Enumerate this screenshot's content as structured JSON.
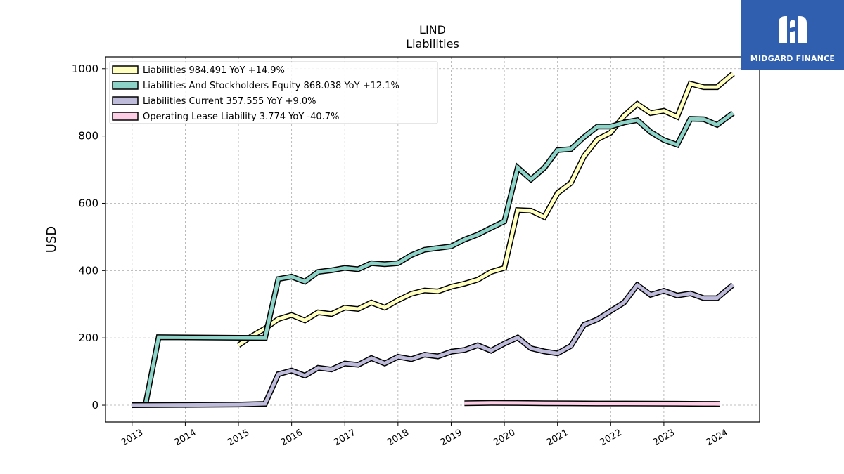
{
  "chart_data": {
    "type": "line",
    "title": "LIND",
    "subtitle": "Liabilities",
    "ylabel": "USD",
    "xlabel": "",
    "ylim": [
      -50,
      1035
    ],
    "xlim": [
      2012.5,
      2024.8
    ],
    "yticks": [
      0,
      200,
      400,
      600,
      800,
      1000
    ],
    "xticks": [
      "2013",
      "2014",
      "2015",
      "2016",
      "2017",
      "2018",
      "2019",
      "2020",
      "2021",
      "2022",
      "2023",
      "2024"
    ],
    "grid": true,
    "legend_position": "top-left",
    "series": [
      {
        "name": "Liabilities",
        "legend": "Liabilities  984.491 YoY +14.9%",
        "color": "#ffffbf",
        "x": [
          2015.0,
          2015.25,
          2015.5,
          2015.75,
          2016.0,
          2016.25,
          2016.5,
          2016.75,
          2017.0,
          2017.25,
          2017.5,
          2017.75,
          2018.0,
          2018.25,
          2018.5,
          2018.75,
          2019.0,
          2019.25,
          2019.5,
          2019.75,
          2020.0,
          2020.25,
          2020.5,
          2020.75,
          2021.0,
          2021.25,
          2021.5,
          2021.75,
          2022.0,
          2022.25,
          2022.5,
          2022.75,
          2023.0,
          2023.25,
          2023.5,
          2023.75,
          2024.0,
          2024.3
        ],
        "y": [
          178,
          205,
          228,
          256,
          268,
          252,
          276,
          271,
          290,
          286,
          305,
          290,
          312,
          331,
          341,
          338,
          352,
          361,
          373,
          396,
          408,
          580,
          578,
          559,
          630,
          660,
          740,
          790,
          810,
          860,
          895,
          868,
          875,
          857,
          955,
          945,
          945,
          985
        ]
      },
      {
        "name": "Liabilities And Stockholders Equity",
        "legend": "Liabilities And Stockholders Equity  868.038 YoY +12.1%",
        "color": "#8dd3c7",
        "x": [
          2013.25,
          2013.5,
          2015.5,
          2015.75,
          2016.0,
          2016.25,
          2016.5,
          2016.75,
          2017.0,
          2017.25,
          2017.5,
          2017.75,
          2018.0,
          2018.25,
          2018.5,
          2018.75,
          2019.0,
          2019.25,
          2019.5,
          2019.75,
          2020.0,
          2020.25,
          2020.5,
          2020.75,
          2021.0,
          2021.25,
          2021.5,
          2021.75,
          2022.0,
          2022.25,
          2022.5,
          2022.75,
          2023.0,
          2023.25,
          2023.5,
          2023.75,
          2024.0,
          2024.3
        ],
        "y": [
          0,
          202,
          200,
          375,
          382,
          367,
          396,
          401,
          408,
          404,
          422,
          419,
          422,
          446,
          462,
          467,
          472,
          492,
          507,
          527,
          546,
          706,
          671,
          705,
          758,
          761,
          797,
          828,
          828,
          840,
          847,
          812,
          788,
          774,
          851,
          850,
          833,
          868
        ]
      },
      {
        "name": "Liabilities Current",
        "legend": "Liabilities Current  357.555 YoY +9.0%",
        "color": "#bebada",
        "x": [
          2013.0,
          2014.0,
          2015.0,
          2015.5,
          2015.75,
          2016.0,
          2016.25,
          2016.5,
          2016.75,
          2017.0,
          2017.25,
          2017.5,
          2017.75,
          2018.0,
          2018.25,
          2018.5,
          2018.75,
          2019.0,
          2019.25,
          2019.5,
          2019.75,
          2020.0,
          2020.25,
          2020.5,
          2020.75,
          2021.0,
          2021.25,
          2021.5,
          2021.75,
          2022.0,
          2022.25,
          2022.5,
          2022.75,
          2023.0,
          2023.25,
          2023.5,
          2023.75,
          2024.0,
          2024.3
        ],
        "y": [
          0,
          1,
          2,
          4,
          92,
          103,
          88,
          111,
          106,
          124,
          120,
          140,
          124,
          144,
          137,
          150,
          145,
          159,
          164,
          178,
          162,
          183,
          201,
          169,
          160,
          154,
          176,
          239,
          255,
          280,
          305,
          357,
          328,
          340,
          326,
          332,
          318,
          318,
          358
        ]
      },
      {
        "name": "Operating Lease Liability",
        "legend": "Operating Lease Liability  3.774 YoY -40.7%",
        "color": "#fccde5",
        "x": [
          2019.25,
          2019.75,
          2020.25,
          2020.75,
          2021.25,
          2021.75,
          2022.25,
          2022.75,
          2023.25,
          2023.75,
          2024.05
        ],
        "y": [
          6,
          7,
          6.5,
          6,
          5.5,
          5,
          5,
          4.8,
          4.5,
          4,
          3.8
        ]
      }
    ]
  },
  "logo": {
    "text": "MIDGARD FINANCE",
    "color": "#2f5fae"
  }
}
